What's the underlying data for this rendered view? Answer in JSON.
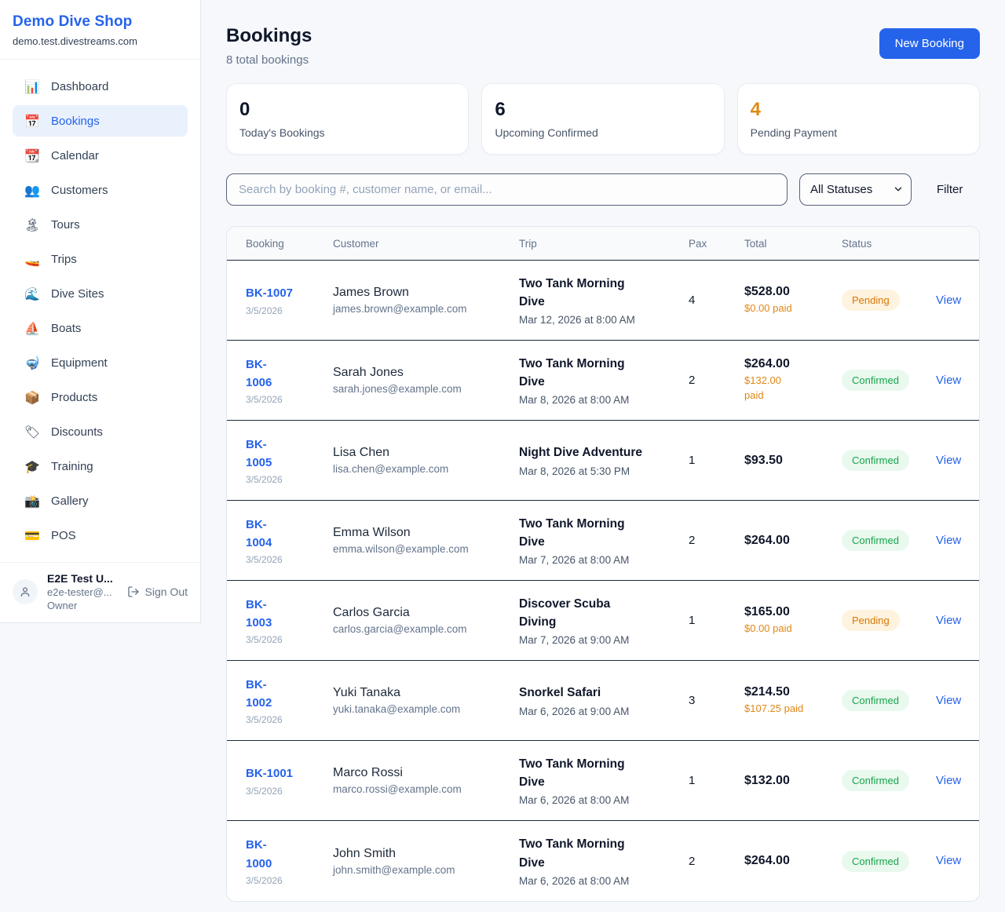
{
  "colors": {
    "accent_blue": "#2563eb",
    "accent_orange": "#dd8b17",
    "paid_orange": "#e08718",
    "dark_text": "#0f172a"
  },
  "sidebar": {
    "brand": "Demo Dive Shop",
    "domain": "demo.test.divestreams.com",
    "items": [
      {
        "label": "Dashboard",
        "icon_char": "📊",
        "icon_name": "bar-chart-icon",
        "active": false
      },
      {
        "label": "Bookings",
        "icon_char": "📅",
        "icon_name": "calendar-icon",
        "active": true
      },
      {
        "label": "Calendar",
        "icon_char": "📆",
        "icon_name": "tear-off-calendar-icon",
        "active": false
      },
      {
        "label": "Customers",
        "icon_char": "👥",
        "icon_name": "people-icon",
        "active": false
      },
      {
        "label": "Tours",
        "icon_char": "🏝",
        "icon_name": "island-icon",
        "active": false
      },
      {
        "label": "Trips",
        "icon_char": "🚤",
        "icon_name": "speedboat-icon",
        "active": false
      },
      {
        "label": "Dive Sites",
        "icon_char": "🌊",
        "icon_name": "wave-icon",
        "active": false
      },
      {
        "label": "Boats",
        "icon_char": "⛵",
        "icon_name": "sailboat-icon",
        "active": false
      },
      {
        "label": "Equipment",
        "icon_char": "🤿",
        "icon_name": "diving-mask-icon",
        "active": false
      },
      {
        "label": "Products",
        "icon_char": "📦",
        "icon_name": "package-icon",
        "active": false
      },
      {
        "label": "Discounts",
        "icon_char": "🏷",
        "icon_name": "label-tag-icon",
        "active": false
      },
      {
        "label": "Training",
        "icon_char": "🎓",
        "icon_name": "graduation-cap-icon",
        "active": false
      },
      {
        "label": "Gallery",
        "icon_char": "📸",
        "icon_name": "camera-flash-icon",
        "active": false
      },
      {
        "label": "POS",
        "icon_char": "💳",
        "icon_name": "credit-card-icon",
        "active": false
      }
    ],
    "user": {
      "name": "E2E Test U...",
      "email": "e2e-tester@...",
      "role": "Owner",
      "sign_out": "Sign Out"
    }
  },
  "header": {
    "title": "Bookings",
    "subtitle": "8 total bookings",
    "new_booking": "New Booking"
  },
  "stats": [
    {
      "value": "0",
      "label": "Today's Bookings",
      "value_color": "#0f172a"
    },
    {
      "value": "6",
      "label": "Upcoming Confirmed",
      "value_color": "#0f172a"
    },
    {
      "value": "4",
      "label": "Pending Payment",
      "value_color": "#dd8b17"
    }
  ],
  "filters": {
    "search_placeholder": "Search by booking #, customer name, or email...",
    "status_select": "All Statuses",
    "filter_label": "Filter"
  },
  "table": {
    "headers": [
      "Booking",
      "Customer",
      "Trip",
      "Pax",
      "Total",
      "Status"
    ],
    "view_label": "View",
    "status_styles": {
      "Pending": {
        "text": "#d97706",
        "bg": "#fdf3de"
      },
      "Confirmed": {
        "text": "#17a34a",
        "bg": "#e9f9ee"
      }
    },
    "rows": [
      {
        "id": "BK-1007",
        "date": "3/5/2026",
        "customer": "James Brown",
        "email": "james.brown@example.com",
        "trip": "Two Tank Morning\nDive",
        "trip_date": "Mar 12, 2026 at 8:00 AM",
        "pax": "4",
        "total": "$528.00",
        "paid": "$0.00 paid",
        "status": "Pending"
      },
      {
        "id": "BK-\n1006",
        "date": "3/5/2026",
        "customer": "Sarah Jones",
        "email": "sarah.jones@example.com",
        "trip": "Two Tank Morning\nDive",
        "trip_date": "Mar 8, 2026 at 8:00 AM",
        "pax": "2",
        "total": "$264.00",
        "paid": "$132.00\npaid",
        "status": "Confirmed"
      },
      {
        "id": "BK-\n1005",
        "date": "3/5/2026",
        "customer": "Lisa Chen",
        "email": "lisa.chen@example.com",
        "trip": "Night Dive Adventure",
        "trip_date": "Mar 8, 2026 at 5:30 PM",
        "pax": "1",
        "total": "$93.50",
        "paid": "",
        "status": "Confirmed"
      },
      {
        "id": "BK-\n1004",
        "date": "3/5/2026",
        "customer": "Emma Wilson",
        "email": "emma.wilson@example.com",
        "trip": "Two Tank Morning\nDive",
        "trip_date": "Mar 7, 2026 at 8:00 AM",
        "pax": "2",
        "total": "$264.00",
        "paid": "",
        "status": "Confirmed"
      },
      {
        "id": "BK-\n1003",
        "date": "3/5/2026",
        "customer": "Carlos Garcia",
        "email": "carlos.garcia@example.com",
        "trip": "Discover Scuba\nDiving",
        "trip_date": "Mar 7, 2026 at 9:00 AM",
        "pax": "1",
        "total": "$165.00",
        "paid": "$0.00 paid",
        "status": "Pending"
      },
      {
        "id": "BK-\n1002",
        "date": "3/5/2026",
        "customer": "Yuki Tanaka",
        "email": "yuki.tanaka@example.com",
        "trip": "Snorkel Safari",
        "trip_date": "Mar 6, 2026 at 9:00 AM",
        "pax": "3",
        "total": "$214.50",
        "paid": "$107.25 paid",
        "status": "Confirmed"
      },
      {
        "id": "BK-1001",
        "date": "3/5/2026",
        "customer": "Marco Rossi",
        "email": "marco.rossi@example.com",
        "trip": "Two Tank Morning\nDive",
        "trip_date": "Mar 6, 2026 at 8:00 AM",
        "pax": "1",
        "total": "$132.00",
        "paid": "",
        "status": "Confirmed"
      },
      {
        "id": "BK-\n1000",
        "date": "3/5/2026",
        "customer": "John Smith",
        "email": "john.smith@example.com",
        "trip": "Two Tank Morning\nDive",
        "trip_date": "Mar 6, 2026 at 8:00 AM",
        "pax": "2",
        "total": "$264.00",
        "paid": "",
        "status": "Confirmed"
      }
    ]
  }
}
